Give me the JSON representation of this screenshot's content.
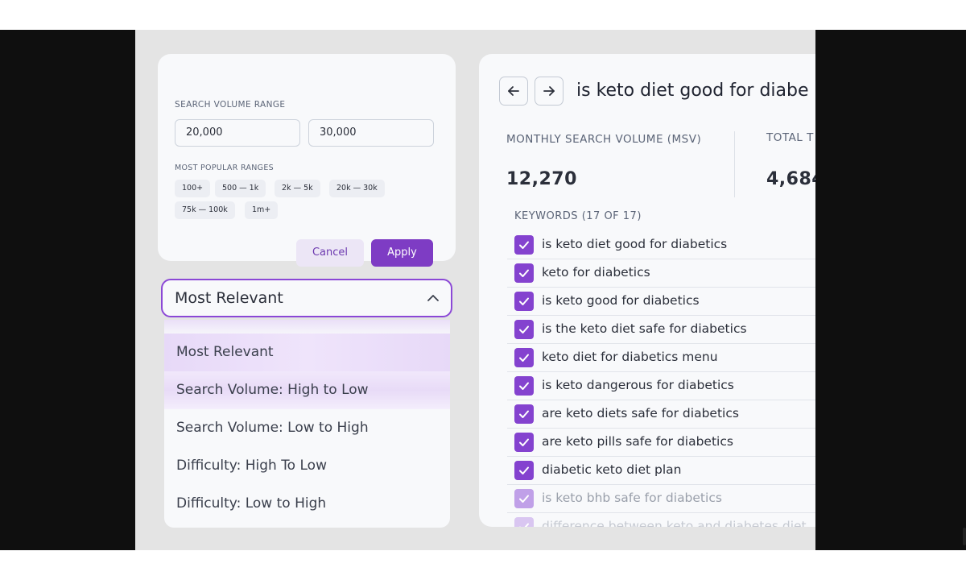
{
  "filter": {
    "section_label": "SEARCH VOLUME RANGE",
    "min_value": "20,000",
    "max_value": "30,000",
    "popular_label": "MOST POPULAR RANGES",
    "chips": [
      "100+",
      "500 — 1k",
      "2k — 5k",
      "20k — 30k",
      "75k — 100k",
      "1m+"
    ],
    "cancel_label": "Cancel",
    "apply_label": "Apply"
  },
  "sort": {
    "selected": "Most Relevant",
    "options": [
      "Most Relevant",
      "Search Volume: High to Low",
      "Search Volume: Low to High",
      "Difficulty: High To Low",
      "Difficulty: Low to High"
    ],
    "highlighted_option": "Search Volume: High to Low"
  },
  "detail": {
    "title": "is keto diet good for diabe",
    "msv_label": "MONTHLY SEARCH VOLUME (MSV)",
    "msv_value": "12,270",
    "total_label": "TOTAL T",
    "total_value": "4,684",
    "keywords_label": "KEYWORDS (17 OF 17)",
    "keywords": [
      "is keto diet good for diabetics",
      "keto for diabetics",
      "is keto good for diabetics",
      "is the keto diet safe for diabetics",
      "keto diet for diabetics menu",
      "is keto dangerous for diabetics",
      "are keto diets safe for diabetics",
      "are keto pills safe for diabetics",
      "diabetic keto diet plan",
      "is keto bhb safe for diabetics",
      "difference between keto and diabetes diet"
    ]
  },
  "colors": {
    "accent": "#7e3cc4",
    "checkbox": "#8442cf",
    "focus_border": "#8b48d6"
  }
}
